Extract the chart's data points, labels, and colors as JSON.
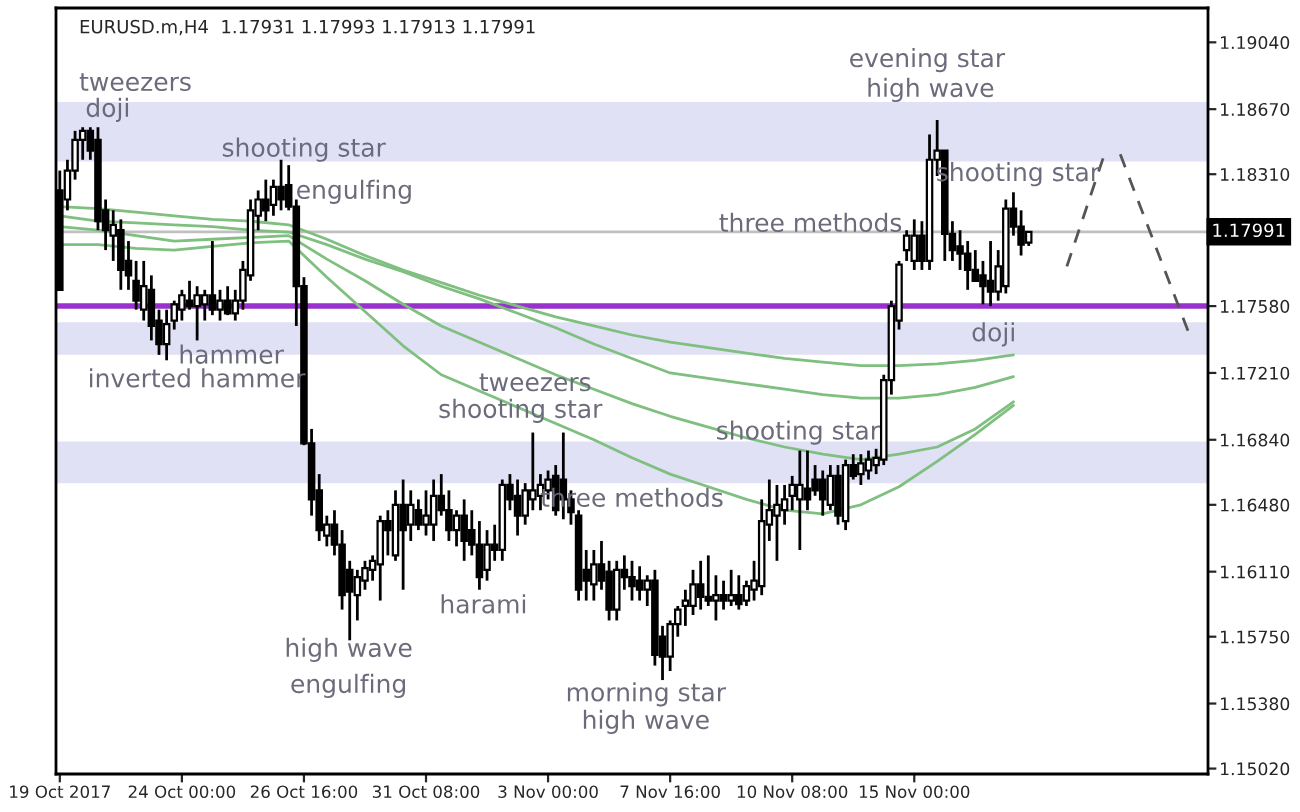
{
  "chart_data": {
    "type": "candlestick",
    "title": "EURUSD.m,H4  1.17931 1.17993 1.17913 1.17991",
    "categories": [
      "19 Oct 2017",
      null,
      null,
      null,
      null,
      null,
      null,
      null,
      null,
      null,
      null,
      null,
      null,
      null,
      null,
      null,
      "24 Oct 00:00",
      null,
      null,
      null,
      null,
      null,
      null,
      null,
      null,
      null,
      null,
      null,
      null,
      null,
      null,
      null,
      "26 Oct 16:00",
      null,
      null,
      null,
      null,
      null,
      null,
      null,
      null,
      null,
      null,
      null,
      null,
      null,
      null,
      null,
      "31 Oct 08:00",
      null,
      null,
      null,
      null,
      null,
      null,
      null,
      null,
      null,
      null,
      null,
      null,
      null,
      null,
      null,
      "3 Nov 00:00",
      null,
      null,
      null,
      null,
      null,
      null,
      null,
      null,
      null,
      null,
      null,
      null,
      null,
      null,
      null,
      "7 Nov 16:00",
      null,
      null,
      null,
      null,
      null,
      null,
      null,
      null,
      null,
      null,
      null,
      null,
      null,
      null,
      null,
      "10 Nov 08:00",
      null,
      null,
      null,
      null,
      null,
      null,
      null,
      null,
      null,
      null,
      null,
      null,
      null,
      null,
      null,
      "15 Nov 00:00",
      null,
      null,
      null,
      null,
      null,
      null,
      null,
      null,
      null,
      null,
      null,
      null,
      null,
      null,
      null,
      null,
      null,
      null,
      null,
      null,
      null,
      null,
      null,
      null,
      null,
      null,
      null,
      null,
      null,
      null,
      null,
      null,
      null,
      null,
      null,
      null,
      null,
      null
    ],
    "ohlc": [
      [
        1.1822,
        1.1833,
        1.1767,
        1.1767
      ],
      [
        1.1817,
        1.1839,
        1.1811,
        1.1833
      ],
      [
        1.1833,
        1.1855,
        1.1828,
        1.185
      ],
      [
        1.185,
        1.1857,
        1.1839,
        1.1855
      ],
      [
        1.1855,
        1.1857,
        1.1839,
        1.1844
      ],
      [
        1.185,
        1.1857,
        1.18,
        1.1805
      ],
      [
        1.1811,
        1.1817,
        1.1789,
        1.18
      ],
      [
        1.1797,
        1.1811,
        1.1783,
        1.1803
      ],
      [
        1.18,
        1.1806,
        1.1767,
        1.1778
      ],
      [
        1.1783,
        1.1794,
        1.1767,
        1.1775
      ],
      [
        1.1772,
        1.1783,
        1.1756,
        1.1761
      ],
      [
        1.1756,
        1.1783,
        1.175,
        1.1769
      ],
      [
        1.1767,
        1.1775,
        1.1739,
        1.1747
      ],
      [
        1.175,
        1.1756,
        1.1731,
        1.1737
      ],
      [
        1.1737,
        1.1756,
        1.1728,
        1.1748
      ],
      [
        1.175,
        1.1761,
        1.1745,
        1.1759
      ],
      [
        1.1756,
        1.1767,
        1.175,
        1.1764
      ],
      [
        1.1761,
        1.1772,
        1.1756,
        1.1758
      ],
      [
        1.1758,
        1.1769,
        1.1739,
        1.1764
      ],
      [
        1.1759,
        1.1767,
        1.175,
        1.1764
      ],
      [
        1.1764,
        1.1794,
        1.1753,
        1.1756
      ],
      [
        1.1756,
        1.1767,
        1.175,
        1.1761
      ],
      [
        1.1761,
        1.1769,
        1.1753,
        1.1754
      ],
      [
        1.1754,
        1.1767,
        1.175,
        1.1761
      ],
      [
        1.1761,
        1.1783,
        1.1756,
        1.1778
      ],
      [
        1.1775,
        1.1817,
        1.1772,
        1.1811
      ],
      [
        1.1808,
        1.1822,
        1.18,
        1.1817
      ],
      [
        1.1817,
        1.1828,
        1.1805,
        1.1811
      ],
      [
        1.1814,
        1.1828,
        1.1808,
        1.1824
      ],
      [
        1.1824,
        1.1839,
        1.1811,
        1.1817
      ],
      [
        1.1825,
        1.1836,
        1.1811,
        1.1813
      ],
      [
        1.1813,
        1.1817,
        1.1747,
        1.1769
      ],
      [
        1.1769,
        1.1774,
        1.1681,
        1.1682
      ],
      [
        1.1682,
        1.169,
        1.1642,
        1.1651
      ],
      [
        1.1656,
        1.1665,
        1.1628,
        1.1634
      ],
      [
        1.1631,
        1.1642,
        1.1625,
        1.1637
      ],
      [
        1.1637,
        1.1645,
        1.162,
        1.1626
      ],
      [
        1.1626,
        1.1634,
        1.159,
        1.1598
      ],
      [
        1.1612,
        1.1617,
        1.1573,
        1.16
      ],
      [
        1.1598,
        1.1612,
        1.1584,
        1.1608
      ],
      [
        1.1606,
        1.1617,
        1.1601,
        1.1613
      ],
      [
        1.1612,
        1.162,
        1.1606,
        1.1617
      ],
      [
        1.1615,
        1.1642,
        1.1595,
        1.1639
      ],
      [
        1.1639,
        1.1645,
        1.162,
        1.1634
      ],
      [
        1.162,
        1.1656,
        1.1617,
        1.1648
      ],
      [
        1.1648,
        1.1662,
        1.1601,
        1.1634
      ],
      [
        1.1637,
        1.1656,
        1.1628,
        1.1648
      ],
      [
        1.1645,
        1.1651,
        1.1634,
        1.1637
      ],
      [
        1.1637,
        1.1656,
        1.1631,
        1.1642
      ],
      [
        1.1637,
        1.1662,
        1.1628,
        1.1653
      ],
      [
        1.1653,
        1.1665,
        1.1642,
        1.1645
      ],
      [
        1.1645,
        1.1656,
        1.1628,
        1.1634
      ],
      [
        1.1634,
        1.1645,
        1.1625,
        1.1642
      ],
      [
        1.1642,
        1.1651,
        1.1617,
        1.1628
      ],
      [
        1.1634,
        1.1645,
        1.162,
        1.1626
      ],
      [
        1.1626,
        1.1639,
        1.1601,
        1.1608
      ],
      [
        1.1612,
        1.1634,
        1.1606,
        1.1626
      ],
      [
        1.1626,
        1.1637,
        1.1617,
        1.1623
      ],
      [
        1.1623,
        1.1662,
        1.1617,
        1.1659
      ],
      [
        1.1659,
        1.1665,
        1.1645,
        1.1651
      ],
      [
        1.1653,
        1.1662,
        1.1631,
        1.1642
      ],
      [
        1.1642,
        1.166,
        1.1637,
        1.1656
      ],
      [
        1.1651,
        1.1688,
        1.1645,
        1.1656
      ],
      [
        1.1653,
        1.1665,
        1.1645,
        1.1659
      ],
      [
        1.1656,
        1.1667,
        1.1651,
        1.1662
      ],
      [
        1.1664,
        1.167,
        1.1642,
        1.1645
      ],
      [
        1.1662,
        1.1688,
        1.164,
        1.1651
      ],
      [
        1.1651,
        1.1656,
        1.1637,
        1.1644
      ],
      [
        1.1642,
        1.1645,
        1.1595,
        1.1601
      ],
      [
        1.1612,
        1.1623,
        1.1595,
        1.1606
      ],
      [
        1.1604,
        1.1623,
        1.1595,
        1.1615
      ],
      [
        1.1615,
        1.1628,
        1.1601,
        1.1606
      ],
      [
        1.1611,
        1.1617,
        1.1584,
        1.159
      ],
      [
        1.159,
        1.1617,
        1.1584,
        1.1612
      ],
      [
        1.1612,
        1.162,
        1.1601,
        1.1608
      ],
      [
        1.1608,
        1.1617,
        1.1595,
        1.1603
      ],
      [
        1.1606,
        1.1614,
        1.1595,
        1.1601
      ],
      [
        1.1601,
        1.1609,
        1.1592,
        1.1606
      ],
      [
        1.1606,
        1.1612,
        1.1559,
        1.1565
      ],
      [
        1.1575,
        1.1581,
        1.1551,
        1.1564
      ],
      [
        1.1564,
        1.1584,
        1.1556,
        1.1582
      ],
      [
        1.1582,
        1.1592,
        1.1575,
        1.159
      ],
      [
        1.1592,
        1.1601,
        1.1581,
        1.1595
      ],
      [
        1.1592,
        1.1612,
        1.1587,
        1.1604
      ],
      [
        1.1604,
        1.1617,
        1.159,
        1.1597
      ],
      [
        1.1597,
        1.162,
        1.1592,
        1.1595
      ],
      [
        1.1595,
        1.1609,
        1.1584,
        1.1598
      ],
      [
        1.1598,
        1.1606,
        1.159,
        1.1595
      ],
      [
        1.1595,
        1.1612,
        1.1592,
        1.1598
      ],
      [
        1.1598,
        1.1609,
        1.159,
        1.1593
      ],
      [
        1.1595,
        1.1606,
        1.1592,
        1.1603
      ],
      [
        1.1601,
        1.1617,
        1.1595,
        1.1606
      ],
      [
        1.1603,
        1.1651,
        1.1598,
        1.1639
      ],
      [
        1.1637,
        1.1662,
        1.1628,
        1.1645
      ],
      [
        1.1642,
        1.1659,
        1.1617,
        1.1648
      ],
      [
        1.1645,
        1.1659,
        1.1637,
        1.1651
      ],
      [
        1.1653,
        1.1664,
        1.1645,
        1.1659
      ],
      [
        1.1651,
        1.1678,
        1.1623,
        1.1659
      ],
      [
        1.1657,
        1.1678,
        1.1645,
        1.1651
      ],
      [
        1.1662,
        1.167,
        1.1653,
        1.1656
      ],
      [
        1.1662,
        1.1667,
        1.1642,
        1.1651
      ],
      [
        1.1648,
        1.167,
        1.1645,
        1.1664
      ],
      [
        1.1664,
        1.167,
        1.1637,
        1.1642
      ],
      [
        1.1639,
        1.1673,
        1.1634,
        1.167
      ],
      [
        1.167,
        1.1676,
        1.1662,
        1.1664
      ],
      [
        1.1665,
        1.1676,
        1.1659,
        1.1671
      ],
      [
        1.1667,
        1.1678,
        1.1662,
        1.1673
      ],
      [
        1.167,
        1.1679,
        1.1665,
        1.1674
      ],
      [
        1.1673,
        1.172,
        1.167,
        1.1717
      ],
      [
        1.1717,
        1.1761,
        1.1709,
        1.1758
      ],
      [
        1.175,
        1.1783,
        1.1745,
        1.1781
      ],
      [
        1.1789,
        1.18,
        1.1783,
        1.1797
      ],
      [
        1.1783,
        1.1806,
        1.1778,
        1.1797
      ],
      [
        1.1797,
        1.1805,
        1.1778,
        1.1783
      ],
      [
        1.1783,
        1.1853,
        1.1778,
        1.1839
      ],
      [
        1.1839,
        1.1861,
        1.183,
        1.1844
      ],
      [
        1.1844,
        1.1844,
        1.1783,
        1.1798
      ],
      [
        1.1798,
        1.1805,
        1.1783,
        1.1789
      ],
      [
        1.1791,
        1.18,
        1.1778,
        1.1787
      ],
      [
        1.1787,
        1.1794,
        1.1767,
        1.1778
      ],
      [
        1.1778,
        1.1789,
        1.1772,
        1.1772
      ],
      [
        1.1775,
        1.1783,
        1.1759,
        1.1769
      ],
      [
        1.1772,
        1.1794,
        1.1758,
        1.1766
      ],
      [
        1.1766,
        1.1789,
        1.1761,
        1.178
      ],
      [
        1.1769,
        1.1817,
        1.1765,
        1.1812
      ],
      [
        1.1812,
        1.1821,
        1.1797,
        1.1802
      ],
      [
        1.1802,
        1.1811,
        1.1786,
        1.1792
      ],
      [
        1.17931,
        1.17993,
        1.17913,
        1.17991
      ],
      null,
      null,
      null,
      null,
      null,
      null,
      null,
      null,
      null,
      null,
      null,
      null,
      null,
      null,
      null,
      null,
      null,
      null,
      null,
      null,
      null,
      null,
      null
    ],
    "series": [
      {
        "type": "line",
        "color": "#7fbf7f",
        "line_style": "solid",
        "values": [
          1.1813,
          null,
          null,
          null,
          null,
          1.1812,
          null,
          null,
          null,
          null,
          1.181,
          null,
          null,
          null,
          null,
          1.1808,
          null,
          null,
          null,
          null,
          1.1806,
          null,
          null,
          null,
          null,
          1.1805,
          null,
          null,
          null,
          null,
          1.1803,
          null,
          null,
          null,
          null,
          1.1795,
          null,
          null,
          null,
          null,
          1.1786,
          null,
          null,
          null,
          null,
          1.1778,
          null,
          null,
          null,
          null,
          1.1771,
          null,
          null,
          null,
          null,
          1.1764,
          null,
          null,
          null,
          null,
          1.1758,
          null,
          null,
          null,
          null,
          1.1752,
          null,
          null,
          null,
          null,
          1.1747,
          null,
          null,
          null,
          null,
          1.1742,
          null,
          null,
          null,
          null,
          1.1738,
          null,
          null,
          null,
          null,
          1.1735,
          null,
          null,
          null,
          null,
          1.1732,
          null,
          null,
          null,
          null,
          1.1729,
          null,
          null,
          null,
          null,
          1.1727,
          null,
          null,
          null,
          null,
          1.1725,
          null,
          null,
          null,
          null,
          1.1725,
          null,
          null,
          null,
          null,
          1.1726,
          null,
          null,
          null,
          null,
          1.1728,
          null,
          null,
          null,
          null,
          1.1731,
          null,
          null,
          null,
          null,
          null,
          null,
          null,
          null,
          null,
          null,
          null,
          null,
          null,
          null,
          null,
          null,
          null,
          null,
          null,
          null,
          null,
          null,
          null,
          null,
          null
        ]
      },
      {
        "type": "line",
        "color": "#7fbf7f",
        "line_style": "solid",
        "values": [
          1.1808,
          null,
          null,
          null,
          null,
          1.1805,
          null,
          null,
          null,
          null,
          1.1804,
          null,
          null,
          null,
          null,
          1.1803,
          null,
          null,
          null,
          null,
          1.1802,
          null,
          null,
          null,
          null,
          1.18,
          null,
          null,
          null,
          null,
          1.1799,
          null,
          null,
          null,
          null,
          1.1792,
          null,
          null,
          null,
          null,
          1.1784,
          null,
          null,
          null,
          null,
          1.1777,
          null,
          null,
          null,
          null,
          1.1769,
          null,
          null,
          null,
          null,
          1.1762,
          null,
          null,
          null,
          null,
          1.1754,
          null,
          null,
          null,
          null,
          1.1746,
          null,
          null,
          null,
          null,
          1.1737,
          null,
          null,
          null,
          null,
          1.1729,
          null,
          null,
          null,
          null,
          1.1721,
          null,
          null,
          null,
          null,
          1.1718,
          null,
          null,
          null,
          null,
          1.1715,
          null,
          null,
          null,
          null,
          1.1712,
          null,
          null,
          null,
          null,
          1.1709,
          null,
          null,
          null,
          null,
          1.1707,
          null,
          null,
          null,
          null,
          1.1707,
          null,
          null,
          null,
          null,
          1.1709,
          null,
          null,
          null,
          null,
          1.1713,
          null,
          null,
          null,
          null,
          1.1719,
          null,
          null,
          null,
          null,
          null,
          null,
          null,
          null,
          null,
          null,
          null,
          null,
          null,
          null,
          null,
          null,
          null,
          null,
          null,
          null,
          null,
          null,
          null,
          null,
          null
        ]
      },
      {
        "type": "line",
        "color": "#7fbf7f",
        "line_style": "solid",
        "values": [
          1.1802,
          null,
          null,
          null,
          null,
          1.18,
          null,
          null,
          null,
          null,
          1.1797,
          null,
          null,
          null,
          null,
          1.1794,
          null,
          null,
          null,
          null,
          1.1795,
          null,
          null,
          null,
          null,
          1.1796,
          null,
          null,
          null,
          null,
          1.1797,
          null,
          null,
          null,
          null,
          1.1784,
          null,
          null,
          null,
          null,
          1.1772,
          null,
          null,
          null,
          null,
          1.1759,
          null,
          null,
          null,
          null,
          1.1747,
          null,
          null,
          null,
          null,
          1.1738,
          null,
          null,
          null,
          null,
          1.1729,
          null,
          null,
          null,
          null,
          1.172,
          null,
          null,
          null,
          null,
          1.1712,
          null,
          null,
          null,
          null,
          1.1704,
          null,
          null,
          null,
          null,
          1.1697,
          null,
          null,
          null,
          null,
          1.1691,
          null,
          null,
          null,
          null,
          1.1685,
          null,
          null,
          null,
          null,
          1.168,
          null,
          null,
          null,
          null,
          1.1676,
          null,
          null,
          null,
          null,
          1.1673,
          null,
          null,
          null,
          null,
          1.1676,
          null,
          null,
          null,
          null,
          1.168,
          null,
          null,
          null,
          null,
          1.169,
          null,
          null,
          null,
          null,
          1.1705,
          null,
          null,
          null,
          null,
          null,
          null,
          null,
          null,
          null,
          null,
          null,
          null,
          null,
          null,
          null,
          null,
          null,
          null,
          null,
          null,
          null,
          null,
          null,
          null,
          null
        ]
      },
      {
        "type": "line",
        "color": "#7fbf7f",
        "line_style": "solid",
        "values": [
          1.1792,
          null,
          null,
          null,
          null,
          1.1792,
          null,
          null,
          null,
          null,
          1.179,
          null,
          null,
          null,
          null,
          1.1789,
          null,
          null,
          null,
          null,
          1.1791,
          null,
          null,
          null,
          null,
          1.1793,
          null,
          null,
          null,
          null,
          1.1794,
          null,
          null,
          null,
          null,
          1.1774,
          null,
          null,
          null,
          null,
          1.1755,
          null,
          null,
          null,
          null,
          1.1736,
          null,
          null,
          null,
          null,
          1.172,
          null,
          null,
          null,
          null,
          1.1711,
          null,
          null,
          null,
          null,
          1.1702,
          null,
          null,
          null,
          null,
          1.1693,
          null,
          null,
          null,
          null,
          1.1684,
          null,
          null,
          null,
          null,
          1.1674,
          null,
          null,
          null,
          null,
          1.1665,
          null,
          null,
          null,
          null,
          1.1658,
          null,
          null,
          null,
          null,
          1.1651,
          null,
          null,
          null,
          null,
          1.1645,
          null,
          null,
          null,
          null,
          1.1643,
          null,
          null,
          null,
          null,
          1.1648,
          null,
          null,
          null,
          null,
          1.1658,
          null,
          null,
          null,
          null,
          1.1672,
          null,
          null,
          null,
          null,
          1.1687,
          null,
          null,
          null,
          null,
          1.1703,
          null,
          null,
          null,
          null,
          null,
          null,
          null,
          null,
          null,
          null,
          null,
          null,
          null,
          null,
          null,
          null,
          null,
          null,
          null,
          null,
          null,
          null,
          null,
          null,
          null
        ]
      },
      {
        "type": "line",
        "color": "#555555",
        "line_style": "dashed",
        "values": [
          null,
          null,
          null,
          null,
          null,
          null,
          null,
          null,
          null,
          null,
          null,
          null,
          null,
          null,
          null,
          null,
          null,
          null,
          null,
          null,
          null,
          null,
          null,
          null,
          null,
          null,
          null,
          null,
          null,
          null,
          null,
          null,
          null,
          null,
          null,
          null,
          null,
          null,
          null,
          null,
          null,
          null,
          null,
          null,
          null,
          null,
          null,
          null,
          null,
          null,
          null,
          null,
          null,
          null,
          null,
          null,
          null,
          null,
          null,
          null,
          null,
          null,
          null,
          null,
          null,
          null,
          null,
          null,
          null,
          null,
          null,
          null,
          null,
          null,
          null,
          null,
          null,
          null,
          null,
          null,
          null,
          null,
          null,
          null,
          null,
          null,
          null,
          null,
          null,
          null,
          null,
          null,
          null,
          null,
          null,
          null,
          null,
          null,
          null,
          null,
          null,
          null,
          null,
          null,
          null,
          null,
          null,
          null,
          null,
          null,
          null,
          null,
          null,
          null,
          null,
          null,
          null,
          null,
          null,
          null,
          null,
          null,
          null,
          null,
          null,
          null,
          null,
          null,
          null,
          null,
          null,
          null,
          1.178,
          null,
          null,
          null,
          null,
          1.1843,
          null,
          null,
          null,
          null,
          null,
          null,
          null,
          null,
          null,
          null,
          null,
          null,
          null
        ]
      },
      {
        "type": "line",
        "color": "#555555",
        "line_style": "dashed",
        "values": [
          null,
          null,
          null,
          null,
          null,
          null,
          null,
          null,
          null,
          null,
          null,
          null,
          null,
          null,
          null,
          null,
          null,
          null,
          null,
          null,
          null,
          null,
          null,
          null,
          null,
          null,
          null,
          null,
          null,
          null,
          null,
          null,
          null,
          null,
          null,
          null,
          null,
          null,
          null,
          null,
          null,
          null,
          null,
          null,
          null,
          null,
          null,
          null,
          null,
          null,
          null,
          null,
          null,
          null,
          null,
          null,
          null,
          null,
          null,
          null,
          null,
          null,
          null,
          null,
          null,
          null,
          null,
          null,
          null,
          null,
          null,
          null,
          null,
          null,
          null,
          null,
          null,
          null,
          null,
          null,
          null,
          null,
          null,
          null,
          null,
          null,
          null,
          null,
          null,
          null,
          null,
          null,
          null,
          null,
          null,
          null,
          null,
          null,
          null,
          null,
          null,
          null,
          null,
          null,
          null,
          null,
          null,
          null,
          null,
          null,
          null,
          null,
          null,
          null,
          null,
          null,
          null,
          null,
          null,
          null,
          null,
          null,
          null,
          null,
          null,
          null,
          null,
          null,
          null,
          null,
          null,
          null,
          null,
          null,
          null,
          null,
          null,
          null,
          null,
          1.1842,
          null,
          null,
          null,
          null,
          null,
          null,
          null,
          null,
          1.1743,
          null,
          null
        ]
      }
    ],
    "bands": [
      {
        "axis": "y",
        "from": 1.1838,
        "to": 1.1871,
        "color": "#e1e1f5"
      },
      {
        "axis": "y",
        "from": 1.1731,
        "to": 1.1749,
        "color": "#e1e1f5"
      },
      {
        "axis": "y",
        "from": 1.166,
        "to": 1.1683,
        "color": "#e1e1f5"
      }
    ],
    "ref_lines": [
      {
        "axis": "y",
        "value": 1.1758,
        "color": "#9932cc"
      },
      {
        "axis": "y",
        "value": 1.17991,
        "label": "1.17991",
        "color": "#c0c0c0"
      }
    ],
    "annotations": [
      "tweezers",
      "doji",
      "shooting star",
      "engulfing",
      {
        "text": "hammer",
        "y": 1.173
      },
      "inverted hammer",
      "high wave",
      "engulfing",
      "harami",
      "tweezers",
      {
        "text": "shooting star",
        "y": 1.17
      },
      "three methods",
      "morning star",
      "high wave",
      {
        "text": "shooting star",
        "y": 1.1688
      },
      {
        "text": "three methods",
        "y": 1.1803
      },
      "evening star",
      "high wave",
      "shooting star",
      "doji"
    ],
    "ylim": [
      1.1499,
      1.1923
    ],
    "yticks": [
      {
        "value": 1.1502,
        "label": "1.15020"
      },
      {
        "value": 1.1538,
        "label": "1.15380"
      },
      {
        "value": 1.1575,
        "label": "1.15750"
      },
      {
        "value": 1.1611,
        "label": "1.16110"
      },
      {
        "value": 1.1648,
        "label": "1.16480"
      },
      {
        "value": 1.1684,
        "label": "1.16840"
      },
      {
        "value": 1.1721,
        "label": "1.17210"
      },
      {
        "value": 1.1758,
        "label": "1.17580"
      },
      {
        "value": 1.1831,
        "label": "1.18310"
      },
      {
        "value": 1.1867,
        "label": "1.18670"
      },
      {
        "value": 1.1904,
        "label": "1.19040"
      }
    ],
    "grid": false,
    "legend": false
  }
}
